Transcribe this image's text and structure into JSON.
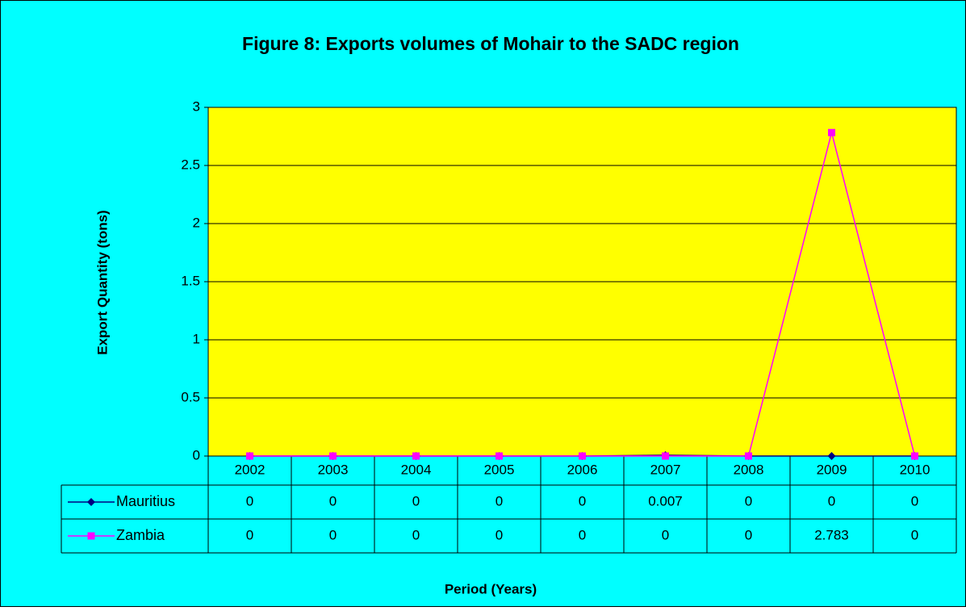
{
  "chart_data": {
    "type": "line",
    "title": "Figure 8: Exports volumes of Mohair to the SADC region",
    "y_label": "Export Quantity (tons)",
    "x_label": "Period (Years)",
    "categories": [
      "2002",
      "2003",
      "2004",
      "2005",
      "2006",
      "2007",
      "2008",
      "2009",
      "2010"
    ],
    "series": [
      {
        "name": "Mauritius",
        "color": "#000080",
        "marker": "diamond",
        "values": [
          0,
          0,
          0,
          0,
          0,
          0.007,
          0,
          0,
          0
        ]
      },
      {
        "name": "Zambia",
        "color": "#ff00ff",
        "marker": "square",
        "values": [
          0,
          0,
          0,
          0,
          0,
          0,
          0,
          2.783,
          0
        ]
      }
    ],
    "ylim": [
      0,
      3
    ],
    "yticks": [
      0,
      0.5,
      1,
      1.5,
      2,
      2.5,
      3
    ],
    "grid": true,
    "background": "#00ffff",
    "plot_background": "#ffff00"
  }
}
